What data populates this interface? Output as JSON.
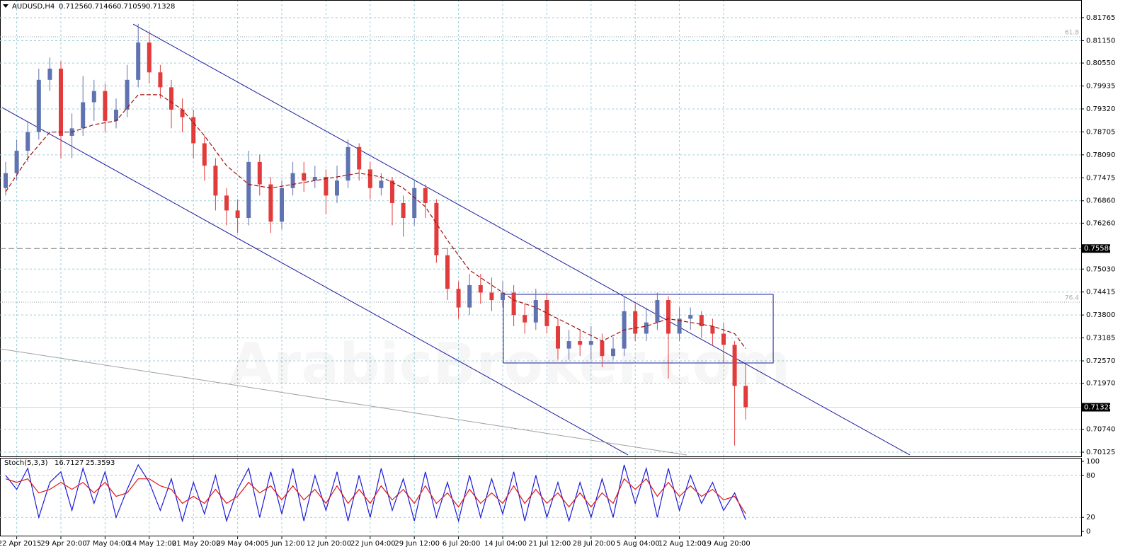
{
  "chart_data": {
    "type": "candlestick",
    "title": "AUDUSD,H4",
    "header_values": [
      0.71256,
      0.71466,
      0.71059,
      0.71328
    ],
    "categories": [
      null,
      "22 Apr 2015",
      null,
      null,
      null,
      "29 Apr 20:00",
      null,
      null,
      null,
      "7 May 04:00",
      null,
      null,
      null,
      "14 May 12:00",
      null,
      null,
      null,
      "21 May 20:00",
      null,
      null,
      null,
      "29 May 04:00",
      null,
      null,
      null,
      "5 Jun 12:00",
      null,
      null,
      null,
      "12 Jun 20:00",
      null,
      null,
      null,
      "22 Jun 04:00",
      null,
      null,
      null,
      "29 Jun 12:00",
      null,
      null,
      null,
      "6 Jul 20:00",
      null,
      null,
      null,
      "14 Jul 04:00",
      null,
      null,
      null,
      "21 Jul 12:00",
      null,
      null,
      null,
      "28 Jul 20:00",
      null,
      null,
      null,
      "5 Aug 04:00",
      null,
      null,
      null,
      "12 Aug 12:00",
      null,
      null,
      null,
      "19 Aug 20:00",
      null,
      null
    ],
    "open": [
      0.772,
      0.776,
      0.782,
      0.787,
      0.801,
      0.804,
      0.786,
      0.788,
      0.795,
      0.798,
      0.79,
      0.793,
      0.801,
      0.811,
      0.803,
      0.799,
      0.793,
      0.791,
      0.784,
      0.778,
      0.77,
      0.766,
      0.764,
      0.779,
      0.773,
      0.763,
      0.772,
      0.776,
      0.774,
      0.775,
      0.77,
      0.774,
      0.783,
      0.777,
      0.772,
      0.774,
      0.768,
      0.764,
      0.772,
      0.768,
      0.754,
      0.745,
      0.74,
      0.746,
      0.744,
      0.742,
      0.744,
      0.738,
      0.736,
      0.742,
      0.735,
      0.729,
      0.731,
      0.73,
      0.731,
      0.727,
      0.729,
      0.739,
      0.733,
      0.736,
      0.742,
      0.733,
      0.737,
      0.738,
      0.735,
      0.733,
      0.73,
      0.719
    ],
    "high": [
      0.779,
      0.785,
      0.79,
      0.804,
      0.807,
      0.806,
      0.792,
      0.802,
      0.801,
      0.8,
      0.796,
      0.805,
      0.816,
      0.814,
      0.805,
      0.801,
      0.796,
      0.793,
      0.786,
      0.78,
      0.772,
      0.769,
      0.782,
      0.781,
      0.775,
      0.774,
      0.779,
      0.779,
      0.778,
      0.777,
      0.778,
      0.785,
      0.784,
      0.779,
      0.776,
      0.775,
      0.77,
      0.774,
      0.773,
      0.769,
      0.756,
      0.747,
      0.749,
      0.749,
      0.748,
      0.747,
      0.746,
      0.741,
      0.745,
      0.744,
      0.737,
      0.734,
      0.734,
      0.735,
      0.733,
      0.732,
      0.743,
      0.741,
      0.74,
      0.744,
      0.743,
      0.74,
      0.74,
      0.739,
      0.737,
      0.736,
      0.731,
      0.725
    ],
    "low": [
      0.77,
      0.774,
      0.779,
      0.785,
      0.798,
      0.78,
      0.78,
      0.786,
      0.79,
      0.787,
      0.788,
      0.791,
      0.799,
      0.8,
      0.796,
      0.788,
      0.787,
      0.78,
      0.774,
      0.766,
      0.762,
      0.76,
      0.762,
      0.77,
      0.76,
      0.761,
      0.77,
      0.771,
      0.772,
      0.765,
      0.768,
      0.772,
      0.774,
      0.769,
      0.77,
      0.762,
      0.759,
      0.762,
      0.764,
      0.752,
      0.742,
      0.737,
      0.738,
      0.741,
      0.739,
      0.74,
      0.735,
      0.733,
      0.734,
      0.733,
      0.726,
      0.726,
      0.727,
      0.726,
      0.724,
      0.726,
      0.727,
      0.731,
      0.731,
      0.734,
      0.721,
      0.731,
      0.734,
      0.732,
      0.73,
      0.725,
      0.703,
      0.71
    ],
    "close": [
      0.776,
      0.782,
      0.787,
      0.801,
      0.804,
      0.786,
      0.788,
      0.795,
      0.798,
      0.79,
      0.793,
      0.801,
      0.811,
      0.803,
      0.799,
      0.793,
      0.791,
      0.784,
      0.778,
      0.77,
      0.766,
      0.764,
      0.779,
      0.773,
      0.763,
      0.772,
      0.776,
      0.774,
      0.775,
      0.77,
      0.774,
      0.783,
      0.777,
      0.772,
      0.774,
      0.768,
      0.764,
      0.772,
      0.768,
      0.754,
      0.745,
      0.74,
      0.746,
      0.744,
      0.742,
      0.744,
      0.738,
      0.736,
      0.742,
      0.735,
      0.729,
      0.731,
      0.73,
      0.731,
      0.727,
      0.729,
      0.739,
      0.733,
      0.736,
      0.742,
      0.733,
      0.737,
      0.738,
      0.735,
      0.733,
      0.73,
      0.719,
      0.71328
    ],
    "up_color": "#5f73b0",
    "down_color": "#e23b3b",
    "ma": {
      "color": "#a01010",
      "x": [
        0,
        2,
        4,
        6,
        8,
        10,
        12,
        14,
        16,
        18,
        20,
        22,
        24,
        26,
        28,
        30,
        32,
        34,
        36,
        38,
        40,
        42,
        44,
        46,
        48,
        50,
        52,
        54,
        56,
        58,
        60,
        62,
        64,
        66,
        67
      ],
      "values": [
        0.771,
        0.78,
        0.787,
        0.787,
        0.789,
        0.79,
        0.797,
        0.797,
        0.793,
        0.786,
        0.778,
        0.773,
        0.772,
        0.773,
        0.774,
        0.775,
        0.776,
        0.775,
        0.772,
        0.767,
        0.758,
        0.75,
        0.746,
        0.742,
        0.74,
        0.737,
        0.734,
        0.731,
        0.734,
        0.735,
        0.737,
        0.736,
        0.735,
        0.733,
        0.729
      ]
    },
    "ylim": [
      0.70011,
      0.82201
    ],
    "yticks": [
      0.81765,
      {
        "value": 0.8115,
        "label": "0.81150"
      },
      {
        "value": 0.8055,
        "label": "0.80550"
      },
      0.79935,
      {
        "value": 0.7932,
        "label": "0.79320"
      },
      0.78705,
      {
        "value": 0.7809,
        "label": "0.78090"
      },
      0.77475,
      {
        "value": 0.7686,
        "label": "0.76860"
      },
      {
        "value": 0.7626,
        "label": "0.76260"
      },
      {
        "value": 0.7503,
        "label": "0.75030"
      },
      0.74415,
      {
        "value": 0.738,
        "label": "0.73800"
      },
      0.73185,
      {
        "value": 0.7257,
        "label": "0.72570"
      },
      {
        "value": 0.7197,
        "label": "0.71970"
      },
      {
        "value": 0.7074,
        "label": "0.70740"
      },
      0.70125
    ],
    "grid": true,
    "hline": {
      "value": 0.7558,
      "label": "0.75580"
    },
    "last_price": 0.71328,
    "fib_levels": [
      {
        "label": "61.8",
        "price": 0.81253
      },
      {
        "label": "76.4",
        "price": 0.74144
      }
    ],
    "trendlines": [
      {
        "color": "#1a1a9c",
        "x_index": [
          11.54,
          81.86
        ],
        "price": [
          0.81594,
          0.70049
        ]
      },
      {
        "color": "#1a1a9c",
        "x_index": [
          -0.32,
          56.35
        ],
        "price": [
          0.79357,
          0.70049
        ]
      },
      {
        "color": "#a0a0a0",
        "x_index": [
          -0.51,
          61.67
        ],
        "price": [
          0.72893,
          0.70049
        ]
      }
    ],
    "rectangle": {
      "color": "#1a1a9c",
      "x_index": [
        45.06,
        69.49
      ],
      "price": [
        0.74353,
        0.72514
      ]
    },
    "watermark": "ArabicBroker.com",
    "indicator": {
      "title": "Stoch(5,3,3)",
      "ylim": [
        -7,
        105
      ],
      "yticks": [
        100,
        80,
        20,
        0
      ],
      "levels": [
        80,
        20
      ],
      "series": [
        {
          "color": "#1b1bd8",
          "values": [
            80,
            60,
            90,
            20,
            70,
            85,
            30,
            90,
            40,
            85,
            20,
            60,
            95,
            70,
            30,
            75,
            15,
            70,
            25,
            80,
            15,
            60,
            90,
            20,
            85,
            25,
            90,
            15,
            80,
            30,
            85,
            15,
            80,
            20,
            90,
            30,
            75,
            15,
            85,
            20,
            70,
            15,
            80,
            20,
            75,
            25,
            85,
            15,
            80,
            20,
            70,
            15,
            70,
            20,
            75,
            20,
            95,
            40,
            90,
            20,
            90,
            30,
            80,
            40,
            70,
            30,
            55,
            16.7127
          ]
        },
        {
          "color": "#e01818",
          "values": [
            75,
            70,
            75,
            55,
            60,
            70,
            60,
            70,
            55,
            70,
            50,
            55,
            75,
            75,
            65,
            60,
            40,
            50,
            40,
            60,
            40,
            50,
            70,
            55,
            65,
            45,
            65,
            45,
            60,
            40,
            65,
            40,
            60,
            40,
            65,
            45,
            60,
            40,
            65,
            40,
            55,
            35,
            60,
            40,
            55,
            40,
            65,
            40,
            60,
            40,
            55,
            35,
            55,
            35,
            55,
            40,
            75,
            60,
            75,
            50,
            70,
            50,
            65,
            50,
            60,
            45,
            50,
            25.3593
          ]
        }
      ]
    }
  }
}
